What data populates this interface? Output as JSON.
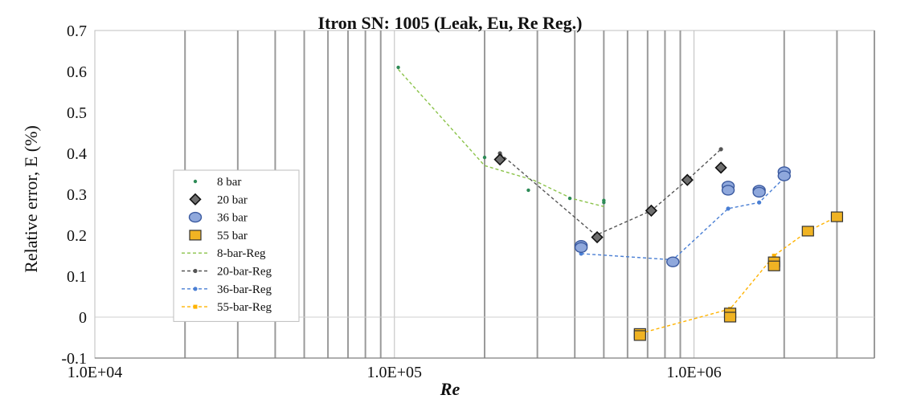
{
  "chart_data": {
    "type": "scatter",
    "title": "Itron SN: 1005 (Leak, Eu, Re Reg.)",
    "xlabel": "Re",
    "ylabel": "Relative error, E (%)",
    "xscale": "log",
    "xlim": [
      10000,
      4000000
    ],
    "ylim": [
      -0.1,
      0.7
    ],
    "x_ticks": [
      10000,
      100000,
      1000000
    ],
    "x_tick_labels": [
      "1.0E+04",
      "1.0E+05",
      "1.0E+06"
    ],
    "y_ticks": [
      -0.1,
      0,
      0.1,
      0.2,
      0.3,
      0.4,
      0.5,
      0.6,
      0.7
    ],
    "y_tick_labels": [
      "-0.1",
      "0",
      "0.1",
      "0.2",
      "0.3",
      "0.4",
      "0.5",
      "0.6",
      "0.7"
    ],
    "grid": "vertical",
    "legend_position": "left",
    "series": [
      {
        "name": "8 bar",
        "marker": "small-dot",
        "color": "#2e8b57",
        "points": [
          [
            103000,
            0.61
          ],
          [
            200000,
            0.39
          ],
          [
            280000,
            0.31
          ],
          [
            385000,
            0.29
          ],
          [
            500000,
            0.285
          ],
          [
            500000,
            0.28
          ]
        ]
      },
      {
        "name": "20 bar",
        "marker": "diamond",
        "color": "#3a3a3a",
        "points": [
          [
            225000,
            0.385
          ],
          [
            475000,
            0.195
          ],
          [
            720000,
            0.26
          ],
          [
            950000,
            0.335
          ],
          [
            1230000,
            0.365
          ]
        ]
      },
      {
        "name": "36 bar",
        "marker": "circle",
        "color": "#8fa8dc",
        "points": [
          [
            420000,
            0.175
          ],
          [
            420000,
            0.17
          ],
          [
            850000,
            0.135
          ],
          [
            1300000,
            0.32
          ],
          [
            1300000,
            0.31
          ],
          [
            1650000,
            0.31
          ],
          [
            1650000,
            0.305
          ],
          [
            2000000,
            0.355
          ],
          [
            2000000,
            0.345
          ]
        ]
      },
      {
        "name": "55 bar",
        "marker": "square",
        "color": "#f0b323",
        "points": [
          [
            660000,
            -0.04
          ],
          [
            660000,
            -0.045
          ],
          [
            1320000,
            0.01
          ],
          [
            1320000,
            0.0
          ],
          [
            1850000,
            0.135
          ],
          [
            1850000,
            0.125
          ],
          [
            2400000,
            0.21
          ],
          [
            3000000,
            0.245
          ]
        ]
      },
      {
        "name": "8-bar-Reg",
        "marker": "none",
        "line": "dashed",
        "color": "#8bc34a",
        "points": [
          [
            103000,
            0.605
          ],
          [
            200000,
            0.37
          ],
          [
            290000,
            0.335
          ],
          [
            390000,
            0.29
          ],
          [
            500000,
            0.27
          ]
        ]
      },
      {
        "name": "20-bar-Reg",
        "marker": "dot",
        "line": "dashed",
        "color": "#555555",
        "points": [
          [
            225000,
            0.4
          ],
          [
            470000,
            0.2
          ],
          [
            720000,
            0.26
          ],
          [
            950000,
            0.335
          ],
          [
            1230000,
            0.41
          ]
        ]
      },
      {
        "name": "36-bar-Reg",
        "marker": "dot",
        "line": "dashed",
        "color": "#4a7fd4",
        "points": [
          [
            420000,
            0.155
          ],
          [
            850000,
            0.14
          ],
          [
            1300000,
            0.265
          ],
          [
            1650000,
            0.28
          ],
          [
            2000000,
            0.34
          ]
        ]
      },
      {
        "name": "55-bar-Reg",
        "marker": "small-square",
        "line": "dashed",
        "color": "#ffb300",
        "points": [
          [
            660000,
            -0.04
          ],
          [
            1320000,
            0.02
          ],
          [
            1850000,
            0.15
          ],
          [
            2400000,
            0.21
          ],
          [
            3000000,
            0.245
          ]
        ]
      }
    ]
  }
}
